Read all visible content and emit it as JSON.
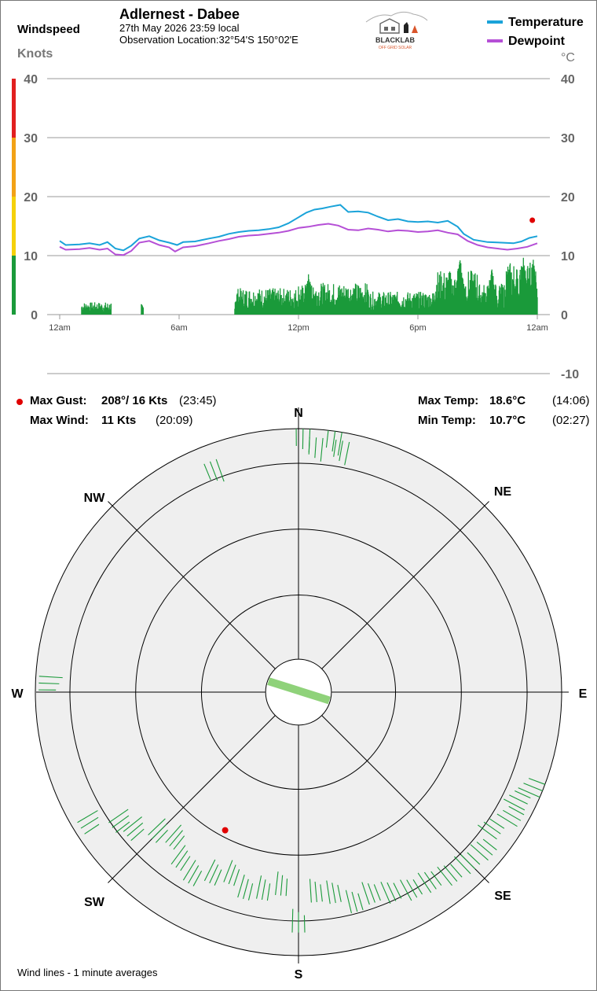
{
  "header": {
    "left_label": "Windspeed",
    "left_unit": "Knots",
    "station": "Adlernest - Dabee",
    "datetime": "27th May 2026  23:59 local",
    "location_label": "Observation Location:",
    "location_value": "32°54'S 150°02'E",
    "logo_text": "BLACKLAB",
    "logo_subtext": "OFF GRID SOLAR",
    "right_unit": "°C"
  },
  "colors": {
    "temperature": "#1aa3d9",
    "dewpoint": "#b54fd6",
    "wind": "#1a9a3a",
    "gust_marker": "#e00000",
    "axis_bar": [
      "#1a9a3a",
      "#f5d10a",
      "#f2a216",
      "#e11f1f"
    ]
  },
  "chart_data": [
    {
      "type": "line",
      "title": "",
      "x": [
        "12am",
        "6am",
        "12pm",
        "6pm",
        "12am"
      ],
      "x_hours": [
        0,
        6,
        12,
        18,
        24
      ],
      "ylabel_left": "Knots",
      "ylabel_right": "°C",
      "ylim_left": [
        0,
        40
      ],
      "ylim_right": [
        -10,
        40
      ],
      "left_ticks": [
        0,
        10,
        20,
        30,
        40
      ],
      "right_ticks": [
        -10,
        0,
        10,
        20,
        30,
        40
      ],
      "grid": true,
      "legend": "top-right",
      "series": [
        {
          "name": "Temperature",
          "points": [
            [
              0,
              12.5
            ],
            [
              0.3,
              11.8
            ],
            [
              1,
              11.9
            ],
            [
              1.5,
              12.1
            ],
            [
              2,
              11.8
            ],
            [
              2.4,
              12.3
            ],
            [
              2.8,
              11.2
            ],
            [
              3.2,
              10.9
            ],
            [
              3.6,
              11.7
            ],
            [
              4,
              12.9
            ],
            [
              4.5,
              13.3
            ],
            [
              5,
              12.6
            ],
            [
              5.5,
              12.2
            ],
            [
              5.9,
              11.8
            ],
            [
              6.2,
              12.3
            ],
            [
              6.8,
              12.4
            ],
            [
              7.5,
              12.9
            ],
            [
              8,
              13.2
            ],
            [
              8.5,
              13.7
            ],
            [
              9,
              14.0
            ],
            [
              9.5,
              14.2
            ],
            [
              10,
              14.3
            ],
            [
              10.5,
              14.5
            ],
            [
              11,
              14.8
            ],
            [
              11.5,
              15.5
            ],
            [
              12,
              16.5
            ],
            [
              12.4,
              17.3
            ],
            [
              12.8,
              17.8
            ],
            [
              13.2,
              18.0
            ],
            [
              13.6,
              18.3
            ],
            [
              14.1,
              18.6
            ],
            [
              14.5,
              17.4
            ],
            [
              15,
              17.5
            ],
            [
              15.5,
              17.3
            ],
            [
              16,
              16.6
            ],
            [
              16.5,
              16.0
            ],
            [
              17,
              16.2
            ],
            [
              17.5,
              15.8
            ],
            [
              18,
              15.7
            ],
            [
              18.5,
              15.8
            ],
            [
              19,
              15.6
            ],
            [
              19.5,
              15.9
            ],
            [
              20,
              14.9
            ],
            [
              20.3,
              13.7
            ],
            [
              20.8,
              12.7
            ],
            [
              21.5,
              12.3
            ],
            [
              22.2,
              12.2
            ],
            [
              22.8,
              12.1
            ],
            [
              23.2,
              12.4
            ],
            [
              23.6,
              13.0
            ],
            [
              24,
              13.3
            ]
          ]
        },
        {
          "name": "Dewpoint",
          "points": [
            [
              0,
              11.5
            ],
            [
              0.3,
              11.0
            ],
            [
              1,
              11.1
            ],
            [
              1.5,
              11.3
            ],
            [
              2,
              11.0
            ],
            [
              2.4,
              11.2
            ],
            [
              2.8,
              10.2
            ],
            [
              3.2,
              10.1
            ],
            [
              3.6,
              10.8
            ],
            [
              4,
              12.2
            ],
            [
              4.5,
              12.5
            ],
            [
              5,
              11.8
            ],
            [
              5.5,
              11.4
            ],
            [
              5.8,
              10.7
            ],
            [
              6.2,
              11.4
            ],
            [
              6.8,
              11.6
            ],
            [
              7.5,
              12.1
            ],
            [
              8,
              12.5
            ],
            [
              8.5,
              12.8
            ],
            [
              9,
              13.2
            ],
            [
              9.5,
              13.4
            ],
            [
              10,
              13.5
            ],
            [
              10.5,
              13.7
            ],
            [
              11,
              13.9
            ],
            [
              11.5,
              14.2
            ],
            [
              12,
              14.7
            ],
            [
              12.5,
              14.9
            ],
            [
              13,
              15.2
            ],
            [
              13.5,
              15.4
            ],
            [
              14,
              15.1
            ],
            [
              14.5,
              14.4
            ],
            [
              15,
              14.3
            ],
            [
              15.5,
              14.6
            ],
            [
              16,
              14.4
            ],
            [
              16.5,
              14.1
            ],
            [
              17,
              14.3
            ],
            [
              17.5,
              14.2
            ],
            [
              18,
              14.0
            ],
            [
              18.5,
              14.1
            ],
            [
              19,
              14.3
            ],
            [
              19.5,
              13.9
            ],
            [
              20,
              13.6
            ],
            [
              20.5,
              12.5
            ],
            [
              21,
              11.8
            ],
            [
              21.5,
              11.4
            ],
            [
              22,
              11.2
            ],
            [
              22.5,
              11.0
            ],
            [
              23,
              11.2
            ],
            [
              23.5,
              11.5
            ],
            [
              24,
              12.1
            ]
          ]
        },
        {
          "name": "Windspeed",
          "axis": "left",
          "segments": [
            {
              "from": 1.1,
              "to": 2.6,
              "level": 1.4
            },
            {
              "from": 4.1,
              "to": 4.2,
              "level": 1.2
            },
            {
              "from": 8.8,
              "to": 12.0,
              "level": 3.0
            },
            {
              "from": 12.0,
              "to": 15.5,
              "level": 3.6
            },
            {
              "from": 15.5,
              "to": 18.8,
              "level": 2.6
            },
            {
              "from": 18.8,
              "to": 21.0,
              "level": 5.0
            },
            {
              "from": 21.0,
              "to": 22.4,
              "level": 3.5
            },
            {
              "from": 22.4,
              "to": 24.0,
              "level": 6.0
            }
          ],
          "peaks": [
            [
              12.5,
              7.4
            ],
            [
              20.1,
              10.6
            ],
            [
              21.7,
              8.5
            ],
            [
              23.3,
              10.0
            ],
            [
              23.8,
              9.4
            ]
          ]
        }
      ],
      "markers": [
        {
          "name": "Max Gust",
          "x": 23.75,
          "y": 16,
          "axis": "left"
        }
      ]
    },
    {
      "type": "scatter",
      "title": "",
      "projection": "polar",
      "compass_labels": [
        "N",
        "NE",
        "E",
        "SE",
        "S",
        "SW",
        "W",
        "NW"
      ],
      "compass_angles": [
        0,
        45,
        90,
        135,
        180,
        225,
        270,
        315
      ],
      "rlim": [
        0,
        16
      ],
      "rings": [
        2,
        5.9,
        9.9,
        13.9,
        16
      ],
      "grid": true,
      "wind_lines": [
        {
          "dir": 1,
          "speed": 16
        },
        {
          "dir": 4,
          "speed": 15.5
        },
        {
          "dir": 8,
          "speed": 16
        },
        {
          "dir": 10,
          "speed": 15.5
        },
        {
          "dir": 339,
          "speed": 15.0
        },
        {
          "dir": 272,
          "speed": 15.8
        },
        {
          "dir": 112,
          "speed": 16
        },
        {
          "dir": 116,
          "speed": 15.5
        },
        {
          "dir": 120,
          "speed": 15.6
        },
        {
          "dir": 125,
          "speed": 15.0
        },
        {
          "dir": 130,
          "speed": 15.4
        },
        {
          "dir": 135,
          "speed": 15.2
        },
        {
          "dir": 140,
          "speed": 15.0
        },
        {
          "dir": 145,
          "speed": 14.6
        },
        {
          "dir": 150,
          "speed": 14.4
        },
        {
          "dir": 155,
          "speed": 14.0
        },
        {
          "dir": 160,
          "speed": 13.6
        },
        {
          "dir": 165,
          "speed": 13.8
        },
        {
          "dir": 170,
          "speed": 13.0
        },
        {
          "dir": 175,
          "speed": 12.8
        },
        {
          "dir": 180,
          "speed": 14.6
        },
        {
          "dir": 185,
          "speed": 12.4
        },
        {
          "dir": 190,
          "speed": 12.8
        },
        {
          "dir": 195,
          "speed": 13.0
        },
        {
          "dir": 200,
          "speed": 12.4
        },
        {
          "dir": 205,
          "speed": 12.8
        },
        {
          "dir": 210,
          "speed": 13.4
        },
        {
          "dir": 215,
          "speed": 13.0
        },
        {
          "dir": 220,
          "speed": 12.2
        },
        {
          "dir": 225,
          "speed": 12.6
        },
        {
          "dir": 230,
          "speed": 13.6
        },
        {
          "dir": 234,
          "speed": 14.0
        },
        {
          "dir": 238,
          "speed": 15.6
        }
      ],
      "mean_wind": {
        "from": 290,
        "to": 105,
        "r": 2.0
      },
      "gust_marker": {
        "dir": 208,
        "speed": 9.5
      }
    }
  ],
  "stats": {
    "max_gust_label": "Max Gust:",
    "max_gust_value": "208°/ 16 Kts",
    "max_gust_time": "(23:45)",
    "max_wind_label": "Max Wind:",
    "max_wind_value": "11 Kts",
    "max_wind_time": "(20:09)",
    "max_temp_label": "Max Temp:",
    "max_temp_value": "18.6°C",
    "max_temp_time": "(14:06)",
    "min_temp_label": "Min Temp:",
    "min_temp_value": "10.7°C",
    "min_temp_time": "(02:27)"
  },
  "footer": {
    "note": "Wind lines - 1 minute averages"
  }
}
